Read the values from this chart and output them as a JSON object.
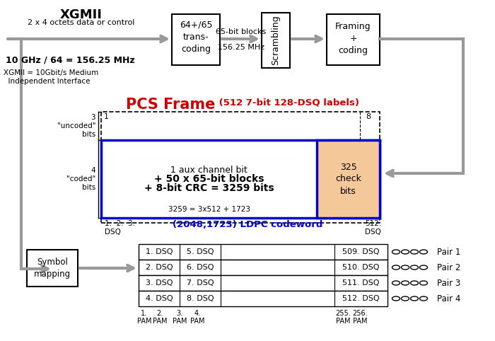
{
  "title_xgmii": "XGMII",
  "sub_xgmii": "2 x 4 octets data or control",
  "freq_label": "10 GHz / 64 = 156.25 MHz",
  "xgmii_def": "XGMII = 10Gbit/s Medium\n  Independent Interface",
  "box1_text": "64+/65\ntrans-\ncoding",
  "label_65bit": "65-bit blocks",
  "label_156": "156.25 MHz",
  "box2_text": "Scrambling",
  "box3_text": "Framing\n+\ncoding",
  "pcs_frame_title": "PCS Frame",
  "pcs_frame_sub": " (512 7-bit 128-DSQ labels)",
  "center_text1": "1 aux channel bit",
  "center_text2": "+ 50 x 65-bit blocks",
  "center_text3": "+ 8-bit CRC = 3259 bits",
  "center_text4": "3259 = 3x512 + 1723",
  "ldpc_text": "(2048,1723) LDPC codeword",
  "check_bits_text": "325\ncheck\nbits",
  "label_3": "3\n\"uncoded\"\nbits",
  "label_4": "4\n\"coded\"\nbits",
  "label_1": "1",
  "label_8": "8",
  "label_dsq_left": "1.  2.  3.\nDSQ",
  "label_dsq_right": "512.\nDSQ",
  "symbol_mapping_text": "Symbol\nmapping",
  "table_rows": [
    [
      "1. DSQ",
      "5. DSQ",
      "509. DSQ"
    ],
    [
      "2. DSQ",
      "6. DSQ",
      "510. DSQ"
    ],
    [
      "3. DSQ",
      "7. DSQ",
      "511. DSQ"
    ],
    [
      "4. DSQ",
      "8. DSQ",
      "512. DSQ"
    ]
  ],
  "pair_labels": [
    "Pair 1",
    "Pair 2",
    "Pair 3",
    "Pair 4"
  ],
  "bg_color": "#ffffff",
  "blue_color": "#0000cc",
  "red_color": "#cc0000",
  "gray_color": "#999999",
  "peach_color": "#f5c89a",
  "arrow_color": "#999999"
}
